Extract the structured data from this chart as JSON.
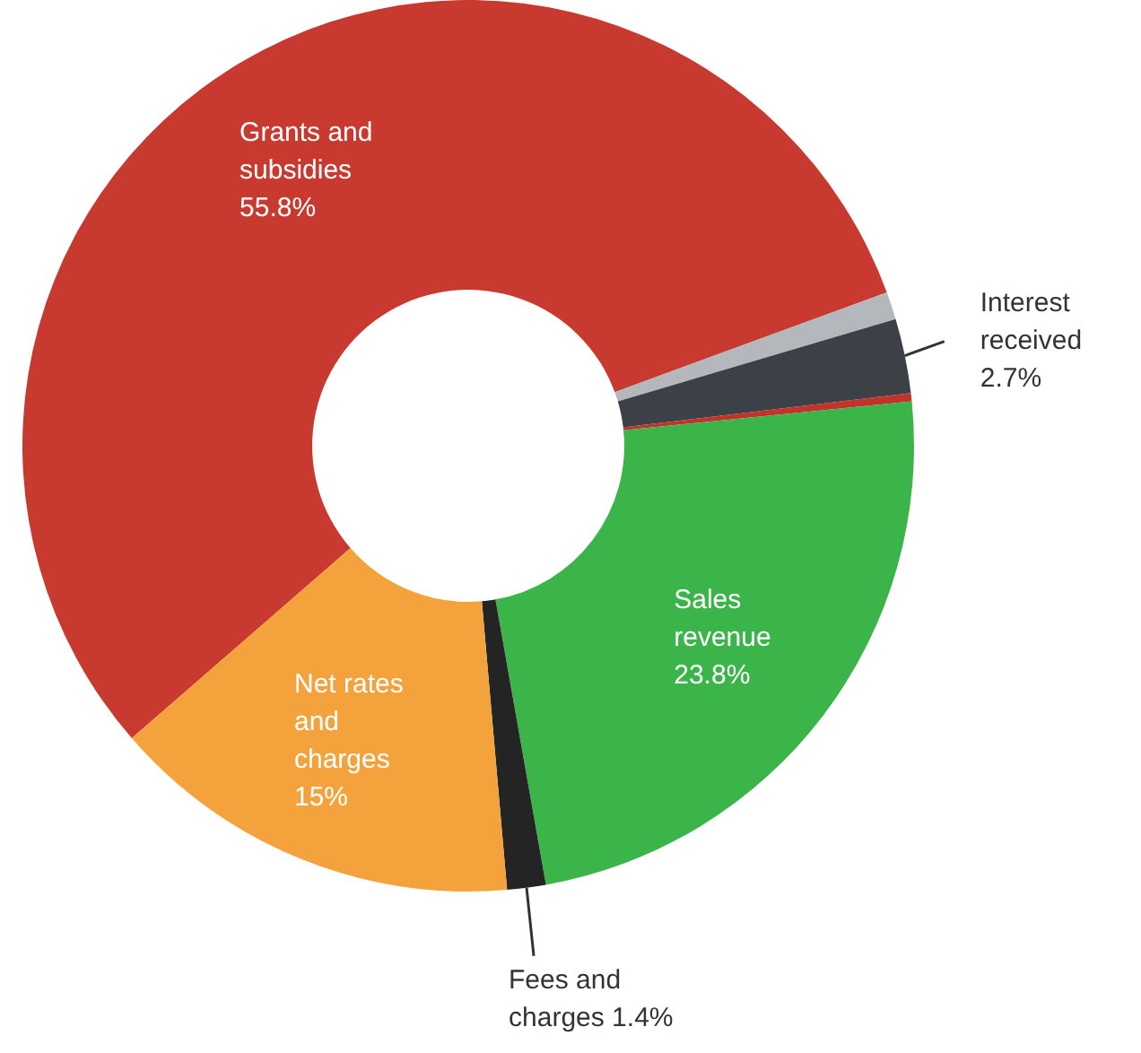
{
  "chart_data": {
    "type": "donut",
    "categories": [
      "Grants and subsidies",
      null,
      "Interest received",
      null,
      "Sales revenue",
      "Fees and charges",
      "Net rates and charges"
    ],
    "values": [
      55.8,
      1.0,
      2.7,
      0.3,
      23.8,
      1.4,
      15
    ],
    "colors": [
      "#c83a2f",
      "#b4b7bc",
      "#3c4047",
      "#c0342a",
      "#3bb54a",
      "#242424",
      "#f4a33c"
    ],
    "value_labels": [
      "55.8%",
      null,
      "2.7%",
      null,
      "23.8%",
      "1.4%",
      "15%"
    ],
    "legend": false
  }
}
